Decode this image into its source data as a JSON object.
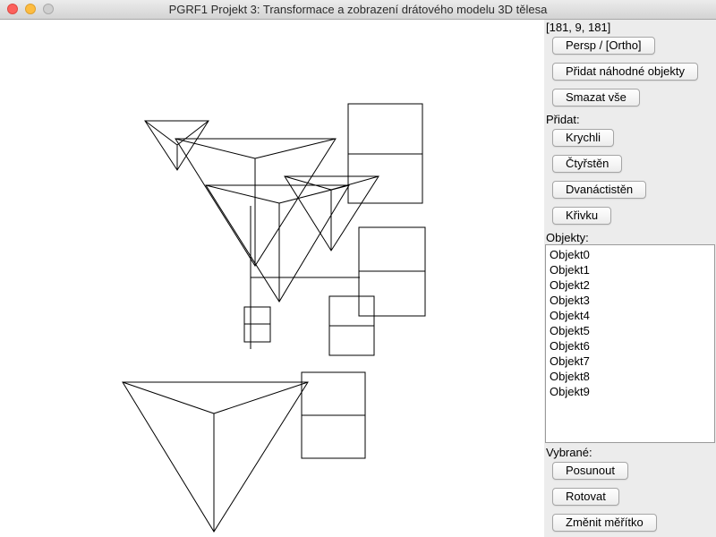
{
  "window": {
    "title": "PGRF1 Projekt 3: Transformace a zobrazení drátového modelu 3D tělesa"
  },
  "panel": {
    "coords": "[181, 9, 181]",
    "projection_button": "Persp / [Ortho]",
    "add_random_button": "Přidat náhodné objekty",
    "delete_all_button": "Smazat vše",
    "add_label": "Přidat:",
    "add_buttons": {
      "cube": "Krychli",
      "tetrahedron": "Čtyřstěn",
      "dodecahedron": "Dvanáctistěn",
      "curve": "Křivku"
    },
    "objects_label": "Objekty:",
    "objects": [
      "Objekt0",
      "Objekt1",
      "Objekt2",
      "Objekt3",
      "Objekt4",
      "Objekt5",
      "Objekt6",
      "Objekt7",
      "Objekt8",
      "Objekt9"
    ],
    "selected_label": "Vybrané:",
    "selected_buttons": {
      "move": "Posunout",
      "rotate": "Rotovat",
      "scale": "Změnit měřítko"
    }
  }
}
